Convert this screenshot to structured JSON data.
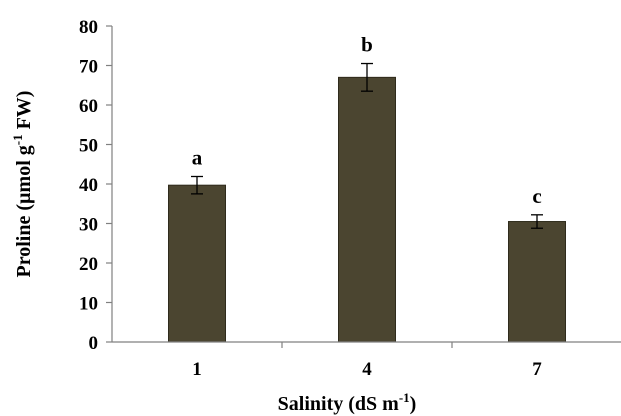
{
  "chart_data": {
    "type": "bar",
    "categories": [
      "1",
      "4",
      "7"
    ],
    "values": [
      39.7,
      67,
      30.5
    ],
    "errors": [
      2.2,
      3.5,
      1.7
    ],
    "bar_labels": [
      "a",
      "b",
      "c"
    ],
    "xlabel": {
      "main": "Salinity (dS m",
      "sup": "-1",
      "tail": ")"
    },
    "ylabel": {
      "main": "Proline (µmol g",
      "sup": "-1",
      "tail": " FW)"
    },
    "ylim": [
      0,
      80
    ],
    "yticks": [
      0,
      10,
      20,
      30,
      40,
      50,
      60,
      70,
      80
    ],
    "grid": false,
    "colors": {
      "bar": "#4b4530",
      "bar_edge": "#2f2b1c",
      "error_bar": "#000000",
      "axis": "#808080"
    }
  }
}
